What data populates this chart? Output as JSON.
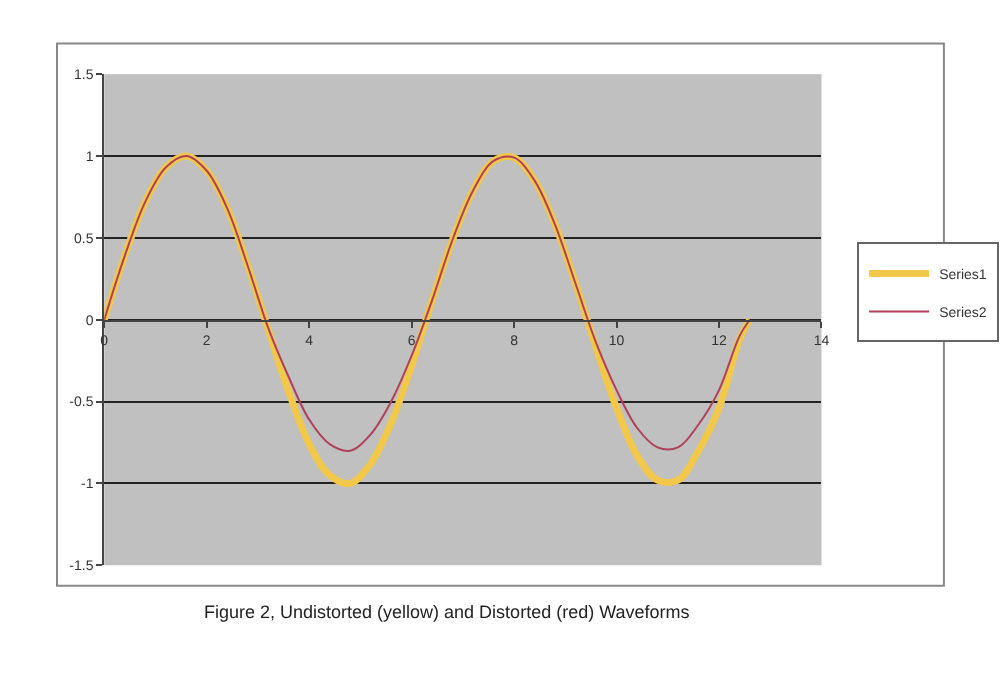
{
  "chart_data": {
    "type": "line",
    "x": [
      0,
      0.4,
      0.8,
      1.2,
      1.6,
      2.0,
      2.4,
      2.8,
      3.2,
      3.6,
      4.0,
      4.4,
      4.8,
      5.2,
      5.6,
      6.0,
      6.4,
      6.8,
      7.2,
      7.6,
      8.0,
      8.4,
      8.8,
      9.2,
      9.6,
      10.0,
      10.4,
      10.8,
      11.2,
      11.6,
      12.0,
      12.4,
      12.6
    ],
    "series": [
      {
        "name": "Series1",
        "color": "#f2c84b",
        "values": [
          0,
          0.39,
          0.72,
          0.93,
          1.0,
          0.91,
          0.68,
          0.33,
          -0.06,
          -0.44,
          -0.76,
          -0.95,
          -1.0,
          -0.88,
          -0.63,
          -0.28,
          0.12,
          0.49,
          0.79,
          0.97,
          0.99,
          0.85,
          0.58,
          0.22,
          -0.17,
          -0.54,
          -0.83,
          -0.98,
          -0.98,
          -0.8,
          -0.54,
          -0.12,
          0.0
        ]
      },
      {
        "name": "Series2",
        "color": "#b0405a",
        "values": [
          0,
          0.39,
          0.72,
          0.93,
          1.0,
          0.91,
          0.68,
          0.33,
          -0.05,
          -0.35,
          -0.61,
          -0.76,
          -0.8,
          -0.7,
          -0.5,
          -0.22,
          0.12,
          0.49,
          0.79,
          0.97,
          0.99,
          0.85,
          0.58,
          0.22,
          -0.14,
          -0.43,
          -0.66,
          -0.78,
          -0.78,
          -0.64,
          -0.43,
          -0.1,
          0.0
        ]
      }
    ],
    "xlim": [
      0,
      14
    ],
    "xticks": [
      0,
      2,
      4,
      6,
      8,
      10,
      12,
      14
    ],
    "ylim": [
      -1.5,
      1.5
    ],
    "yticks": [
      -1.5,
      -1,
      -0.5,
      0,
      0.5,
      1,
      1.5
    ],
    "grid": "y",
    "legend": "right",
    "marker": "none",
    "line_style": "solid",
    "annotations": [
      "Figure 2, Undistorted (yellow) and Distorted (red) Waveforms"
    ]
  }
}
